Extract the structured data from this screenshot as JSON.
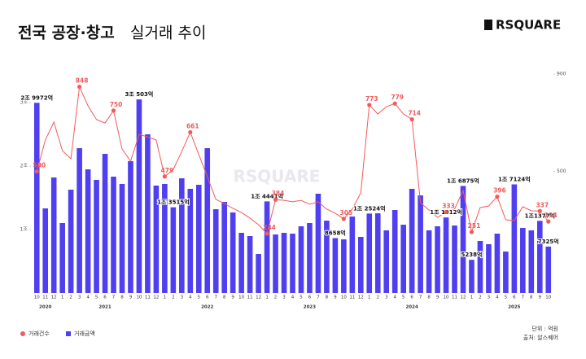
{
  "chart_data": {
    "type": "bar-line",
    "title": "전국 공장·창고",
    "title_suffix": "실거래 추이",
    "logo": "RSQUARE",
    "watermark": "RSQUARE",
    "unit_note": "단위 : 억원",
    "source_note": "출처: 알스퀘어",
    "categories": [
      "10",
      "11",
      "12",
      "1",
      "2",
      "3",
      "4",
      "5",
      "6",
      "7",
      "8",
      "9",
      "10",
      "11",
      "12",
      "1",
      "2",
      "3",
      "4",
      "5",
      "6",
      "7",
      "8",
      "9",
      "10",
      "11",
      "12",
      "1",
      "2",
      "3",
      "4",
      "5",
      "6",
      "7",
      "8",
      "9",
      "10",
      "11",
      "12",
      "1",
      "2",
      "3",
      "4",
      "5",
      "6",
      "7",
      "8",
      "9",
      "10",
      "11",
      "12",
      "1",
      "2",
      "3",
      "4",
      "5",
      "6",
      "7",
      "8",
      "9",
      "10"
    ],
    "year_labels": [
      null,
      "2020",
      null,
      null,
      null,
      null,
      null,
      null,
      "2021",
      null,
      null,
      null,
      null,
      null,
      null,
      null,
      null,
      null,
      null,
      null,
      "2022",
      null,
      null,
      null,
      null,
      null,
      null,
      null,
      null,
      null,
      null,
      null,
      "2023",
      null,
      null,
      null,
      null,
      null,
      null,
      null,
      null,
      null,
      null,
      null,
      "2024",
      null,
      null,
      null,
      null,
      null,
      null,
      null,
      null,
      null,
      null,
      null,
      "2025",
      null,
      null,
      null,
      null
    ],
    "ylim": [
      0,
      34500
    ],
    "yticks": [
      {
        "value": 10000,
        "label": "1조"
      },
      {
        "value": 20000,
        "label": "2조"
      },
      {
        "value": 30000,
        "label": "3조"
      }
    ],
    "y2lim": [
      0,
      900
    ],
    "y2ticks": [
      500,
      900
    ],
    "series": [
      {
        "name": "거래금액",
        "type": "bar",
        "axis": "y",
        "color": "#4f3ff0",
        "values": [
          29972,
          13340,
          18210,
          11030,
          16290,
          22830,
          19490,
          17830,
          21930,
          18340,
          17190,
          20780,
          30503,
          25010,
          16930,
          17190,
          13515,
          18080,
          16420,
          17060,
          22830,
          13210,
          14360,
          12700,
          9490,
          8980,
          6160,
          14441,
          9230,
          9490,
          9360,
          10520,
          11030,
          15650,
          11410,
          8658,
          8460,
          12060,
          8850,
          12524,
          12570,
          9880,
          13080,
          10770,
          16420,
          15390,
          9880,
          10520,
          11912,
          10640,
          16875,
          5238,
          8210,
          7700,
          9360,
          6540,
          17124,
          10260,
          9880,
          11377,
          7325
        ],
        "value_labels": [
          "2조 9972억",
          null,
          null,
          null,
          null,
          null,
          null,
          null,
          null,
          null,
          null,
          null,
          "3조 503억",
          null,
          null,
          null,
          "1조 3515억",
          null,
          null,
          null,
          null,
          null,
          null,
          null,
          null,
          null,
          null,
          "1조 4441억",
          null,
          null,
          null,
          null,
          null,
          null,
          null,
          "8658억",
          null,
          null,
          null,
          "1조 2524억",
          null,
          null,
          null,
          null,
          null,
          null,
          null,
          null,
          "1조 1912억",
          null,
          "1조 6875억",
          "5238억",
          null,
          null,
          null,
          null,
          "1조 7124억",
          null,
          null,
          "1조1377억",
          "7325억"
        ]
      },
      {
        "name": "거래건수",
        "type": "line",
        "axis": "y2",
        "color": "#f25a5a",
        "values": [
          500,
          629,
          703,
          585,
          552,
          848,
          770,
          713,
          699,
          750,
          592,
          542,
          652,
          642,
          629,
          479,
          508,
          582,
          661,
          569,
          478,
          385,
          368,
          348,
          331,
          308,
          281,
          244,
          384,
          381,
          375,
          381,
          365,
          375,
          345,
          328,
          305,
          345,
          412,
          773,
          736,
          766,
          779,
          736,
          714,
          371,
          341,
          311,
          333,
          345,
          422,
          251,
          351,
          358,
          396,
          301,
          298,
          355,
          338,
          337,
          294
        ],
        "value_labels": [
          "500",
          null,
          null,
          null,
          null,
          "848",
          null,
          null,
          null,
          "750",
          null,
          null,
          null,
          null,
          null,
          "479",
          null,
          null,
          "661",
          null,
          null,
          null,
          null,
          null,
          null,
          null,
          null,
          "244",
          "384",
          null,
          null,
          null,
          null,
          null,
          null,
          null,
          "305",
          null,
          null,
          "773",
          null,
          null,
          "779",
          null,
          "714",
          null,
          null,
          null,
          "333",
          null,
          null,
          "251",
          null,
          null,
          "396",
          null,
          null,
          null,
          null,
          "337",
          "294"
        ]
      }
    ]
  }
}
